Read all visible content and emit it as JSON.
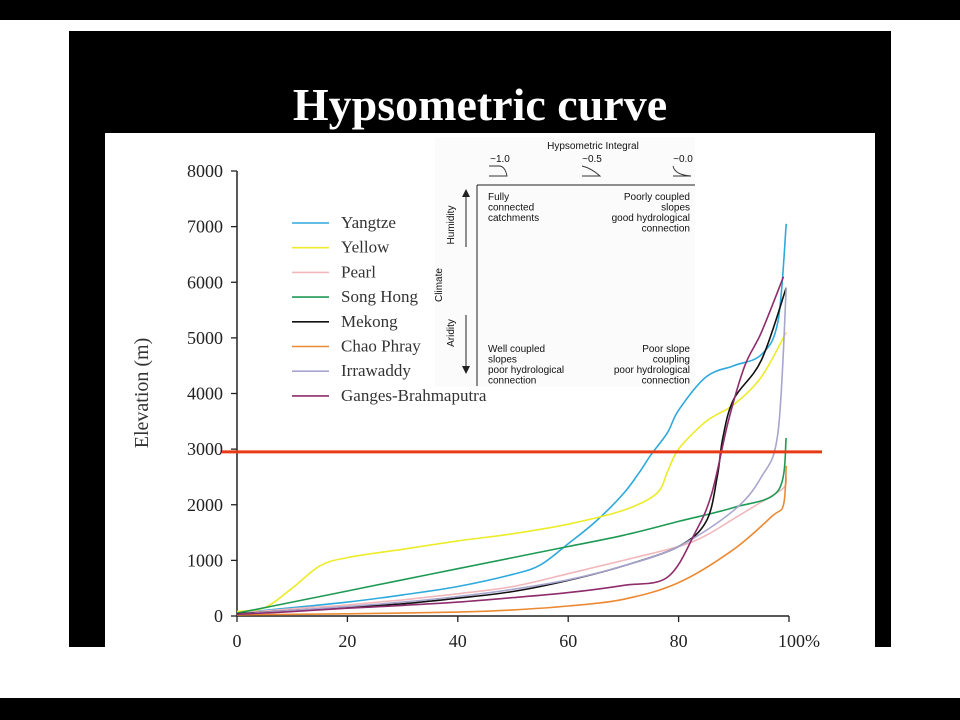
{
  "slide": {
    "title": "Hypsometric curve"
  },
  "chart_data": {
    "type": "line",
    "title": "",
    "xlabel": "",
    "ylabel": "Elevation (m)",
    "xlim": [
      0,
      100
    ],
    "ylim": [
      0,
      8000
    ],
    "x_ticks": [
      "0",
      "20",
      "40",
      "60",
      "80",
      "100%"
    ],
    "y_ticks": [
      "0",
      "1000",
      "2000",
      "3000",
      "4000",
      "5000",
      "6000",
      "7000",
      "8000"
    ],
    "legend_position": "top-left",
    "reference_line": {
      "y": 2950,
      "color": "#e83a14"
    },
    "series": [
      {
        "name": "Yangtze",
        "color": "#2ea9dd",
        "points": [
          [
            0,
            50
          ],
          [
            10,
            150
          ],
          [
            20,
            250
          ],
          [
            30,
            380
          ],
          [
            40,
            530
          ],
          [
            50,
            750
          ],
          [
            55,
            920
          ],
          [
            60,
            1300
          ],
          [
            65,
            1700
          ],
          [
            70,
            2200
          ],
          [
            73,
            2600
          ],
          [
            75,
            2900
          ],
          [
            78,
            3300
          ],
          [
            80,
            3700
          ],
          [
            85,
            4300
          ],
          [
            90,
            4500
          ],
          [
            95,
            4700
          ],
          [
            98,
            5300
          ],
          [
            99.5,
            7050
          ]
        ]
      },
      {
        "name": "Yellow",
        "color": "#ecec2a",
        "points": [
          [
            0,
            80
          ],
          [
            5,
            150
          ],
          [
            10,
            500
          ],
          [
            15,
            900
          ],
          [
            20,
            1050
          ],
          [
            30,
            1200
          ],
          [
            40,
            1350
          ],
          [
            50,
            1480
          ],
          [
            60,
            1650
          ],
          [
            70,
            1900
          ],
          [
            76,
            2200
          ],
          [
            78,
            2600
          ],
          [
            80,
            3000
          ],
          [
            85,
            3500
          ],
          [
            90,
            3800
          ],
          [
            95,
            4300
          ],
          [
            99.5,
            5100
          ]
        ]
      },
      {
        "name": "Pearl",
        "color": "#f1b7bb",
        "points": [
          [
            0,
            50
          ],
          [
            10,
            130
          ],
          [
            20,
            200
          ],
          [
            30,
            290
          ],
          [
            40,
            400
          ],
          [
            50,
            530
          ],
          [
            60,
            760
          ],
          [
            70,
            1000
          ],
          [
            80,
            1250
          ],
          [
            85,
            1450
          ],
          [
            90,
            1750
          ],
          [
            95,
            2050
          ],
          [
            99,
            2300
          ],
          [
            99.5,
            2500
          ]
        ]
      },
      {
        "name": "Song Hong",
        "color": "#1e9a55",
        "points": [
          [
            0,
            50
          ],
          [
            10,
            250
          ],
          [
            20,
            450
          ],
          [
            30,
            650
          ],
          [
            40,
            850
          ],
          [
            50,
            1050
          ],
          [
            60,
            1250
          ],
          [
            70,
            1450
          ],
          [
            80,
            1700
          ],
          [
            90,
            1950
          ],
          [
            98,
            2250
          ],
          [
            99.5,
            3200
          ]
        ]
      },
      {
        "name": "Mekong",
        "color": "#111111",
        "points": [
          [
            0,
            40
          ],
          [
            10,
            100
          ],
          [
            20,
            160
          ],
          [
            30,
            220
          ],
          [
            40,
            320
          ],
          [
            50,
            440
          ],
          [
            60,
            640
          ],
          [
            70,
            900
          ],
          [
            80,
            1250
          ],
          [
            85,
            1700
          ],
          [
            87,
            2500
          ],
          [
            88,
            3200
          ],
          [
            90,
            3900
          ],
          [
            95,
            4600
          ],
          [
            99.5,
            5900
          ]
        ]
      },
      {
        "name": "Chao Phray",
        "color": "#ec8a34",
        "points": [
          [
            0,
            20
          ],
          [
            20,
            40
          ],
          [
            40,
            70
          ],
          [
            50,
            110
          ],
          [
            60,
            180
          ],
          [
            70,
            300
          ],
          [
            80,
            600
          ],
          [
            90,
            1200
          ],
          [
            97,
            1800
          ],
          [
            99,
            2000
          ],
          [
            99.5,
            2700
          ]
        ]
      },
      {
        "name": "Irrawaddy",
        "color": "#a8a5cf",
        "points": [
          [
            0,
            30
          ],
          [
            10,
            100
          ],
          [
            20,
            170
          ],
          [
            30,
            250
          ],
          [
            40,
            350
          ],
          [
            50,
            480
          ],
          [
            60,
            650
          ],
          [
            70,
            900
          ],
          [
            80,
            1250
          ],
          [
            90,
            1900
          ],
          [
            95,
            2500
          ],
          [
            98,
            3300
          ],
          [
            99.5,
            5900
          ]
        ]
      },
      {
        "name": "Ganges-Brahmaputra",
        "color": "#8f2c6c",
        "points": [
          [
            0,
            30
          ],
          [
            10,
            80
          ],
          [
            20,
            140
          ],
          [
            30,
            190
          ],
          [
            40,
            250
          ],
          [
            50,
            330
          ],
          [
            60,
            420
          ],
          [
            70,
            550
          ],
          [
            78,
            700
          ],
          [
            83,
            1500
          ],
          [
            86,
            2200
          ],
          [
            89,
            3500
          ],
          [
            92,
            4500
          ],
          [
            95,
            5100
          ],
          [
            99,
            6100
          ]
        ]
      }
    ]
  },
  "inset": {
    "title": "Hypsometric Integral",
    "hi_labels": [
      "~1.0",
      "~0.5",
      "~0.0"
    ],
    "humidity_label": "Humidity",
    "climate_label": "Climate",
    "aridity_label": "Aridity",
    "top_left_lines": [
      "Fully",
      "connected",
      "catchments"
    ],
    "top_right_lines": [
      "Poorly coupled",
      "slopes",
      "good hydrological",
      "connection"
    ],
    "bottom_left_lines": [
      "Well coupled",
      "slopes",
      "poor hydrological",
      "connection"
    ],
    "bottom_right_lines": [
      "Poor slope",
      "coupling",
      "poor hydrological",
      "connection"
    ]
  }
}
